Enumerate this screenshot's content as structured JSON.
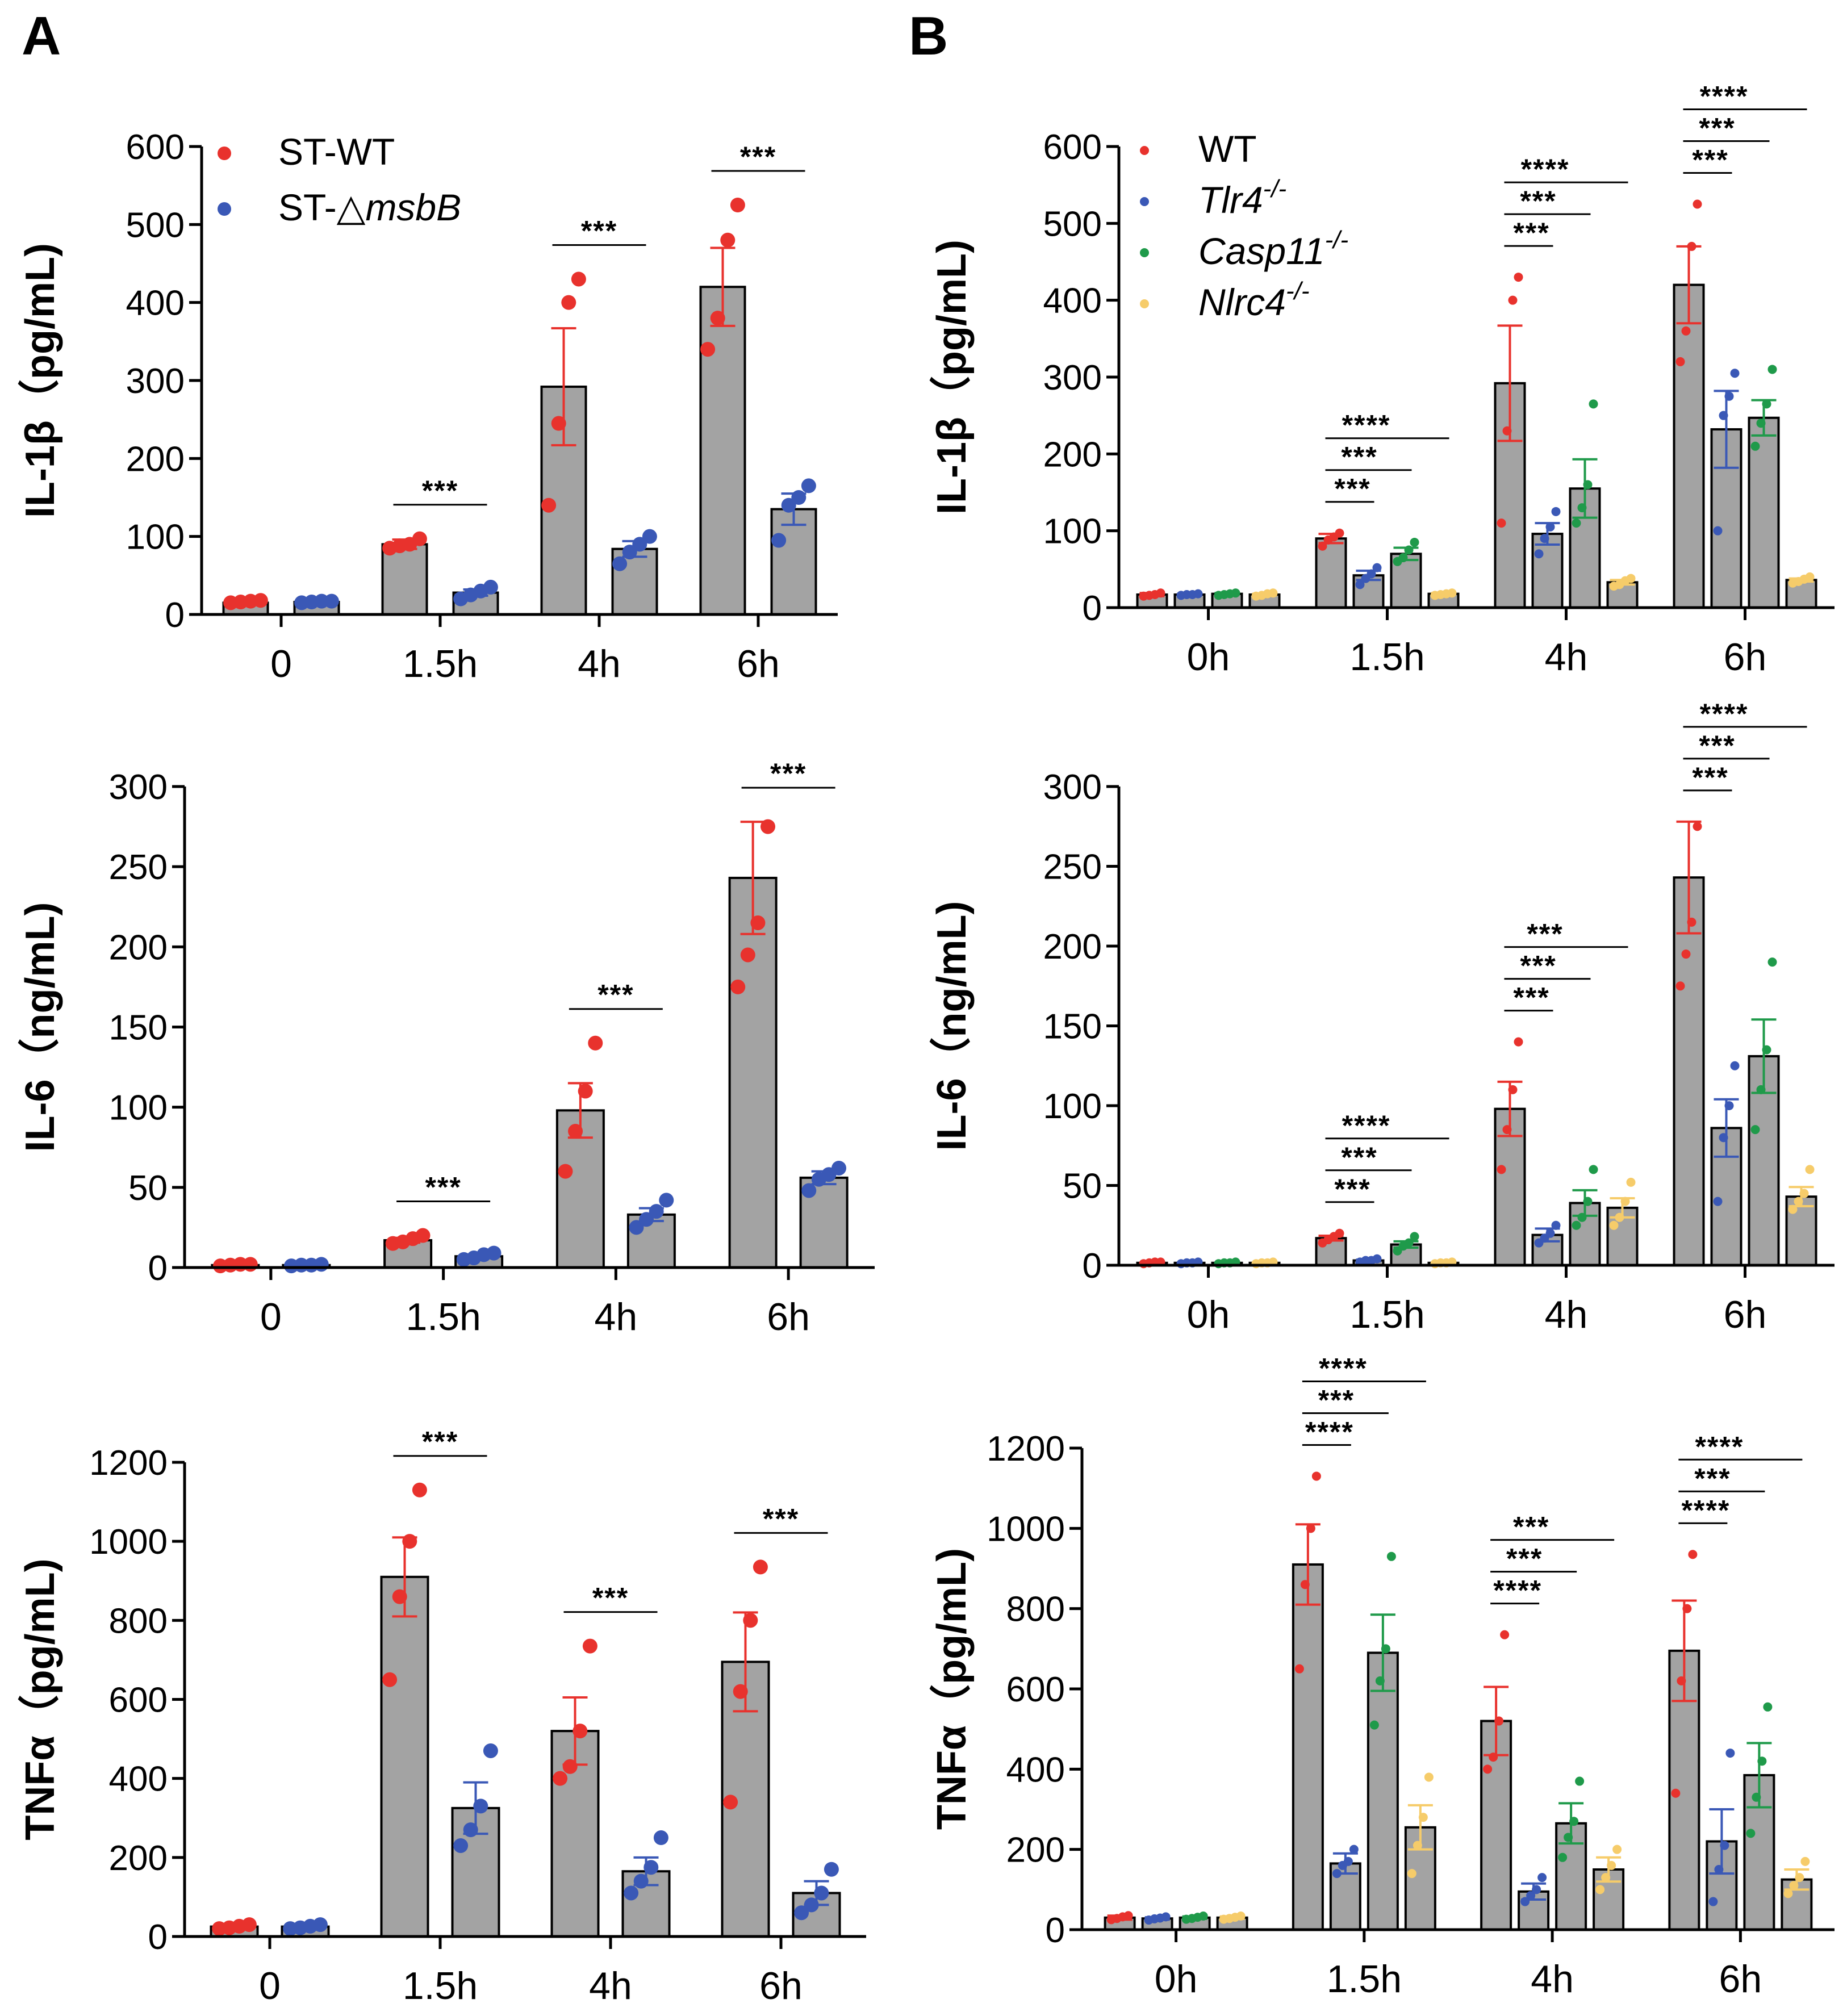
{
  "figure": {
    "panel_labels": [
      "A",
      "B"
    ]
  },
  "legends": {
    "A": [
      {
        "text": "ST-WT",
        "color": "#e8322d"
      },
      {
        "text": "ST-△",
        "italic": "msbB",
        "color": "#3a58b6"
      }
    ],
    "B": [
      {
        "text": "WT",
        "color": "#e8322d"
      },
      {
        "text": "Tlr4",
        "sup": "-/-",
        "italic_all": true,
        "color": "#3a58b6"
      },
      {
        "text": "Casp11",
        "sup": "-/-",
        "italic_all": true,
        "color": "#1f9a4a"
      },
      {
        "text": "Nlrc4",
        "sup": "-/-",
        "italic_all": true,
        "color": "#f6cc6a"
      }
    ]
  },
  "chart_data": [
    {
      "panel": "A",
      "type": "bar",
      "ylabel": "IL-1β（pg/mL)",
      "ylim": [
        0,
        600
      ],
      "yticks": [
        0,
        100,
        200,
        300,
        400,
        500,
        600
      ],
      "categories": [
        "0",
        "1.5h",
        "4h",
        "6h"
      ],
      "series": [
        {
          "name": "ST-WT",
          "color": "#e8322d",
          "values": [
            15,
            90,
            292,
            420
          ],
          "sem": [
            2,
            6,
            75,
            50
          ],
          "points": [
            [
              15,
              16,
              17,
              18
            ],
            [
              85,
              88,
              90,
              97
            ],
            [
              140,
              245,
              400,
              430
            ],
            [
              340,
              380,
              480,
              525
            ]
          ]
        },
        {
          "name": "ST-ΔmsbB",
          "color": "#3a58b6",
          "values": [
            16,
            28,
            84,
            135
          ],
          "sem": [
            1,
            4,
            10,
            20
          ],
          "points": [
            [
              15,
              16,
              17,
              17
            ],
            [
              20,
              25,
              30,
              35
            ],
            [
              65,
              80,
              90,
              100
            ],
            [
              95,
              140,
              150,
              165
            ]
          ]
        }
      ],
      "significance": [
        {
          "category": "1.5h",
          "label": "***"
        },
        {
          "category": "4h",
          "label": "***"
        },
        {
          "category": "6h",
          "label": "***"
        }
      ]
    },
    {
      "panel": "A",
      "type": "bar",
      "ylabel": "IL-6（ng/mL)",
      "ylim": [
        0,
        300
      ],
      "yticks": [
        0,
        50,
        100,
        150,
        200,
        250,
        300
      ],
      "categories": [
        "0",
        "1.5h",
        "4h",
        "6h"
      ],
      "series": [
        {
          "name": "ST-WT",
          "color": "#e8322d",
          "values": [
            1.5,
            17,
            98,
            243
          ],
          "sem": [
            0.3,
            1.5,
            17,
            35
          ],
          "points": [
            [
              1,
              1.5,
              2,
              2
            ],
            [
              15,
              16,
              18,
              20
            ],
            [
              60,
              85,
              110,
              140
            ],
            [
              175,
              195,
              215,
              275
            ]
          ]
        },
        {
          "name": "ST-ΔmsbB",
          "color": "#3a58b6",
          "values": [
            1.5,
            7,
            33,
            56
          ],
          "sem": [
            0.3,
            1,
            4,
            4
          ],
          "points": [
            [
              1,
              1.5,
              1.5,
              2
            ],
            [
              5,
              6,
              8,
              9
            ],
            [
              25,
              30,
              35,
              42
            ],
            [
              48,
              55,
              58,
              62
            ]
          ]
        }
      ],
      "significance": [
        {
          "category": "1.5h",
          "label": "***"
        },
        {
          "category": "4h",
          "label": "***"
        },
        {
          "category": "6h",
          "label": "***"
        }
      ]
    },
    {
      "panel": "A",
      "type": "bar",
      "ylabel": "TNFα（pg/mL)",
      "ylim": [
        0,
        1200
      ],
      "yticks": [
        0,
        200,
        400,
        600,
        800,
        1000,
        1200
      ],
      "categories": [
        "0",
        "1.5h",
        "4h",
        "6h"
      ],
      "series": [
        {
          "name": "ST-WT",
          "color": "#e8322d",
          "values": [
            25,
            910,
            520,
            695
          ],
          "sem": [
            5,
            100,
            85,
            125
          ],
          "points": [
            [
              20,
              22,
              26,
              30
            ],
            [
              650,
              860,
              1000,
              1130
            ],
            [
              400,
              430,
              520,
              735
            ],
            [
              340,
              620,
              800,
              935
            ]
          ]
        },
        {
          "name": "ST-ΔmsbB",
          "color": "#3a58b6",
          "values": [
            25,
            325,
            165,
            110
          ],
          "sem": [
            5,
            65,
            35,
            30
          ],
          "points": [
            [
              20,
              22,
              26,
              30
            ],
            [
              230,
              270,
              330,
              470
            ],
            [
              110,
              140,
              175,
              250
            ],
            [
              60,
              80,
              110,
              170
            ]
          ]
        }
      ],
      "significance": [
        {
          "category": "1.5h",
          "label": "***"
        },
        {
          "category": "4h",
          "label": "***"
        },
        {
          "category": "6h",
          "label": "***"
        }
      ]
    },
    {
      "panel": "B",
      "type": "bar",
      "ylabel": "IL-1β（pg/mL)",
      "ylim": [
        0,
        600
      ],
      "yticks": [
        0,
        100,
        200,
        300,
        400,
        500,
        600
      ],
      "categories": [
        "0h",
        "1.5h",
        "4h",
        "6h"
      ],
      "series": [
        {
          "name": "WT",
          "color": "#e8322d",
          "values": [
            17,
            90,
            292,
            420
          ],
          "sem": [
            2,
            6,
            75,
            50
          ],
          "points": [
            [
              15,
              16,
              17,
              19
            ],
            [
              80,
              88,
              92,
              97
            ],
            [
              110,
              230,
              400,
              430
            ],
            [
              320,
              360,
              470,
              525
            ]
          ]
        },
        {
          "name": "Tlr4-/-",
          "color": "#3a58b6",
          "values": [
            17,
            42,
            96,
            232
          ],
          "sem": [
            1,
            6,
            14,
            50
          ],
          "points": [
            [
              16,
              17,
              17,
              18
            ],
            [
              30,
              38,
              44,
              52
            ],
            [
              70,
              90,
              105,
              125
            ],
            [
              100,
              250,
              275,
              305
            ]
          ]
        },
        {
          "name": "Casp11-/-",
          "color": "#1f9a4a",
          "values": [
            18,
            70,
            155,
            247
          ],
          "sem": [
            1,
            8,
            38,
            23
          ],
          "points": [
            [
              16,
              17,
              18,
              19
            ],
            [
              60,
              65,
              75,
              85
            ],
            [
              110,
              130,
              160,
              265
            ],
            [
              210,
              240,
              265,
              310
            ]
          ]
        },
        {
          "name": "Nlrc4-/-",
          "color": "#f6cc6a",
          "values": [
            17,
            18,
            33,
            36
          ],
          "sem": [
            1,
            1,
            3,
            2
          ],
          "points": [
            [
              15,
              16,
              18,
              19
            ],
            [
              16,
              17,
              18,
              19
            ],
            [
              28,
              30,
              35,
              38
            ],
            [
              32,
              34,
              37,
              40
            ]
          ]
        }
      ],
      "significance": [
        {
          "category": "1.5h",
          "labels": [
            "***",
            "***",
            "****"
          ]
        },
        {
          "category": "4h",
          "labels": [
            "***",
            "***",
            "****"
          ]
        },
        {
          "category": "6h",
          "labels": [
            "***",
            "***",
            "****"
          ]
        }
      ]
    },
    {
      "panel": "B",
      "type": "bar",
      "ylabel": "IL-6（ng/mL)",
      "ylim": [
        0,
        300
      ],
      "yticks": [
        0,
        50,
        100,
        150,
        200,
        250,
        300
      ],
      "categories": [
        "0h",
        "1.5h",
        "4h",
        "6h"
      ],
      "series": [
        {
          "name": "WT",
          "color": "#e8322d",
          "values": [
            1.5,
            17,
            98,
            243
          ],
          "sem": [
            0.3,
            1.5,
            17,
            35
          ],
          "points": [
            [
              1,
              1.5,
              2,
              2
            ],
            [
              14,
              16,
              18,
              20
            ],
            [
              60,
              85,
              110,
              140
            ],
            [
              175,
              195,
              215,
              275
            ]
          ]
        },
        {
          "name": "Tlr4-/-",
          "color": "#3a58b6",
          "values": [
            1.5,
            3,
            19,
            86
          ],
          "sem": [
            0.3,
            0.5,
            4,
            18
          ],
          "points": [
            [
              1,
              1.5,
              1.5,
              2
            ],
            [
              2,
              3,
              3,
              4
            ],
            [
              14,
              17,
              20,
              25
            ],
            [
              40,
              80,
              100,
              125
            ]
          ]
        },
        {
          "name": "Casp11-/-",
          "color": "#1f9a4a",
          "values": [
            1.5,
            13,
            39,
            131
          ],
          "sem": [
            0.3,
            2,
            8,
            23
          ],
          "points": [
            [
              1,
              1.5,
              1.5,
              2
            ],
            [
              9,
              12,
              14,
              18
            ],
            [
              25,
              30,
              40,
              60
            ],
            [
              85,
              110,
              135,
              190
            ]
          ]
        },
        {
          "name": "Nlrc4-/-",
          "color": "#f6cc6a",
          "values": [
            1.5,
            1.5,
            36,
            43
          ],
          "sem": [
            0.3,
            0.3,
            6,
            6
          ],
          "points": [
            [
              1,
              1.5,
              1.5,
              2
            ],
            [
              1,
              1.5,
              1.5,
              2
            ],
            [
              25,
              30,
              40,
              52
            ],
            [
              35,
              40,
              45,
              60
            ]
          ]
        }
      ],
      "significance": [
        {
          "category": "1.5h",
          "labels": [
            "***",
            "***",
            "****"
          ]
        },
        {
          "category": "4h",
          "labels": [
            "***",
            "***",
            "***"
          ]
        },
        {
          "category": "6h",
          "labels": [
            "***",
            "***",
            "****"
          ]
        }
      ]
    },
    {
      "panel": "B",
      "type": "bar",
      "ylabel": "TNFα（pg/mL)",
      "ylim": [
        0,
        1200
      ],
      "yticks": [
        0,
        200,
        400,
        600,
        800,
        1000,
        1200
      ],
      "categories": [
        "0h",
        "1.5h",
        "4h",
        "6h"
      ],
      "series": [
        {
          "name": "WT",
          "color": "#e8322d",
          "values": [
            30,
            910,
            520,
            695
          ],
          "sem": [
            5,
            100,
            85,
            125
          ],
          "points": [
            [
              25,
              28,
              32,
              35
            ],
            [
              650,
              860,
              1000,
              1130
            ],
            [
              400,
              430,
              520,
              735
            ],
            [
              340,
              620,
              800,
              935
            ]
          ]
        },
        {
          "name": "Tlr4-/-",
          "color": "#3a58b6",
          "values": [
            28,
            165,
            95,
            220
          ],
          "sem": [
            3,
            25,
            20,
            80
          ],
          "points": [
            [
              24,
              27,
              29,
              32
            ],
            [
              140,
              160,
              170,
              200
            ],
            [
              70,
              85,
              100,
              130
            ],
            [
              70,
              150,
              210,
              440
            ]
          ]
        },
        {
          "name": "Casp11-/-",
          "color": "#1f9a4a",
          "values": [
            30,
            690,
            265,
            385
          ],
          "sem": [
            3,
            95,
            50,
            80
          ],
          "points": [
            [
              26,
              28,
              31,
              34
            ],
            [
              510,
              620,
              700,
              930
            ],
            [
              180,
              230,
              270,
              370
            ],
            [
              240,
              330,
              420,
              555
            ]
          ]
        },
        {
          "name": "Nlrc4-/-",
          "color": "#f6cc6a",
          "values": [
            30,
            255,
            150,
            125
          ],
          "sem": [
            3,
            55,
            30,
            25
          ],
          "points": [
            [
              26,
              28,
              31,
              34
            ],
            [
              140,
              210,
              280,
              380
            ],
            [
              100,
              130,
              160,
              200
            ],
            [
              90,
              110,
              130,
              170
            ]
          ]
        }
      ],
      "significance": [
        {
          "category": "1.5h",
          "labels": [
            "****",
            "***",
            "****"
          ]
        },
        {
          "category": "4h",
          "labels": [
            "****",
            "***",
            "***"
          ]
        },
        {
          "category": "6h",
          "labels": [
            "****",
            "***",
            "****"
          ]
        }
      ]
    }
  ]
}
